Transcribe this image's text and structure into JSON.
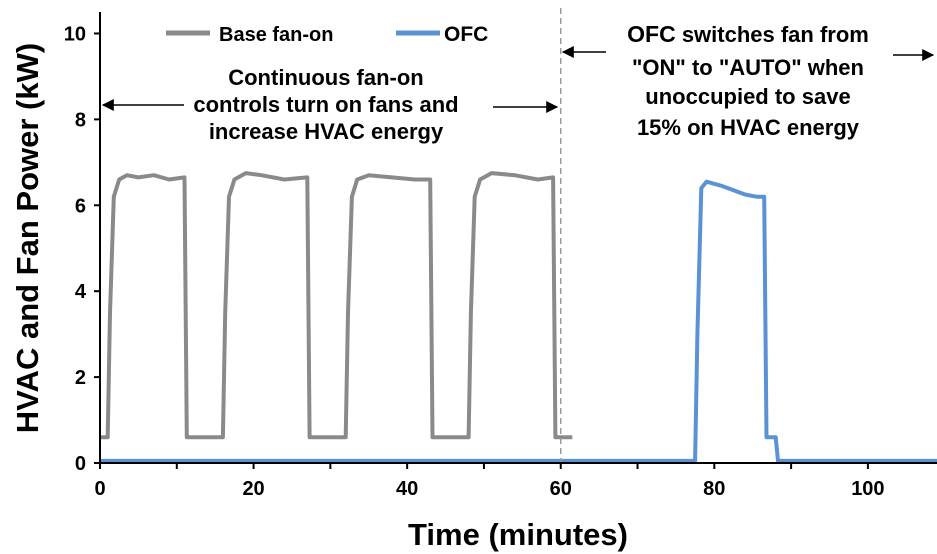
{
  "chart_data": {
    "type": "line",
    "xlabel": "Time (minutes)",
    "ylabel": "HVAC and Fan Power (kW)",
    "xlim": [
      0,
      109
    ],
    "ylim": [
      0,
      10.5
    ],
    "x_ticks": [
      "0",
      "20",
      "40",
      "60",
      "80",
      "100"
    ],
    "y_ticks": [
      "0",
      "2",
      "4",
      "6",
      "8",
      "10"
    ],
    "grid": false,
    "legend_position": "top-left",
    "colors": {
      "base": "#8a8a8a",
      "ofc": "#5b92d6"
    },
    "divider_x": 60,
    "series": [
      {
        "name": "Base fan-on",
        "x": [
          0,
          1,
          1.3,
          1.8,
          2.5,
          3.5,
          5,
          7,
          9,
          11,
          11.3,
          13,
          16,
          16.3,
          16.8,
          17.5,
          19,
          21,
          24,
          27,
          27.3,
          30,
          32,
          32.3,
          32.8,
          33.5,
          35,
          38,
          41,
          43,
          43.3,
          45.5,
          48,
          48.3,
          48.8,
          49.5,
          51,
          54,
          57,
          59,
          59.3,
          61.5
        ],
        "values": [
          0.6,
          0.6,
          3.5,
          6.2,
          6.6,
          6.7,
          6.65,
          6.7,
          6.6,
          6.65,
          0.6,
          0.6,
          0.6,
          3.5,
          6.2,
          6.6,
          6.75,
          6.7,
          6.6,
          6.65,
          0.6,
          0.6,
          0.6,
          3.5,
          6.2,
          6.6,
          6.7,
          6.65,
          6.6,
          6.6,
          0.6,
          0.6,
          0.6,
          3.5,
          6.2,
          6.6,
          6.75,
          6.7,
          6.6,
          6.65,
          0.6,
          0.6
        ]
      },
      {
        "name": "OFC",
        "x": [
          0,
          77.5,
          77.8,
          78.3,
          79,
          80,
          81,
          82.5,
          84,
          85.5,
          86.5,
          86.8,
          88,
          88.3,
          109
        ],
        "values": [
          0.05,
          0.05,
          3,
          6.4,
          6.55,
          6.5,
          6.45,
          6.35,
          6.25,
          6.2,
          6.2,
          0.6,
          0.6,
          0.05,
          0.05
        ]
      }
    ],
    "annotations": {
      "left": [
        "Continuous fan-on",
        "controls turn on fans and",
        "increase HVAC energy"
      ],
      "right_ofc": "OFC",
      "right_line1_rest": " switches fan from",
      "right_lines": [
        "\"ON\" to \"AUTO\" when",
        "unoccupied to save",
        "15% on HVAC energy"
      ]
    }
  }
}
